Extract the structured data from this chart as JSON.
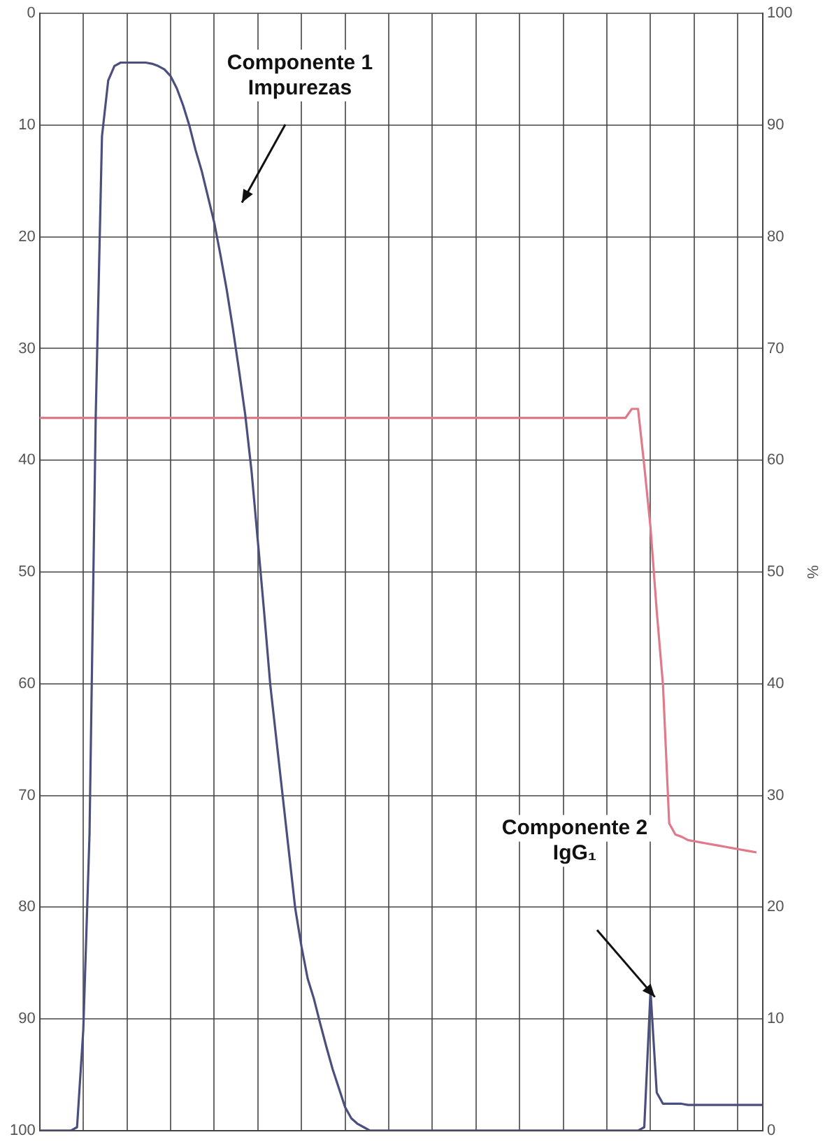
{
  "chart_data": {
    "type": "line",
    "categories": [
      null,
      null,
      null,
      null,
      null,
      null,
      null,
      null,
      null,
      null,
      null,
      null,
      null,
      null,
      null,
      null,
      null,
      null,
      null,
      null,
      null,
      null,
      null,
      null,
      null,
      null,
      null,
      null,
      null,
      null,
      null,
      null,
      null,
      null,
      null,
      null,
      null,
      null,
      null,
      null,
      null,
      null,
      null,
      null,
      null,
      null,
      null,
      null,
      null,
      null,
      null,
      null,
      null,
      null,
      null,
      null,
      null,
      null,
      null,
      null,
      null,
      null,
      null,
      null,
      null,
      null,
      null,
      null,
      null,
      null,
      null,
      null,
      null,
      null,
      null,
      null,
      null,
      null,
      null,
      null,
      null,
      null,
      null,
      null,
      null,
      null,
      null,
      null,
      null,
      null,
      null,
      null,
      null,
      null,
      null,
      null,
      null,
      null,
      null,
      null,
      null,
      null,
      null,
      null,
      null,
      null,
      null,
      null,
      null,
      null,
      null,
      null,
      null,
      null,
      null,
      null,
      null
    ],
    "series": [
      {
        "color": "#4a4f7e",
        "axis": "y2",
        "values": [
          0,
          0,
          0,
          0,
          0,
          0,
          0.3,
          9,
          26.5,
          64,
          89,
          94,
          95.3,
          95.6,
          95.6,
          95.6,
          95.6,
          95.6,
          95.5,
          95.3,
          95,
          94.4,
          93.3,
          91.8,
          90,
          87.8,
          85.9,
          83.6,
          81.3,
          78.4,
          75.3,
          71.8,
          68,
          64,
          59,
          52.8,
          46.5,
          39.9,
          34.9,
          29.9,
          24.9,
          19.9,
          16.5,
          13.6,
          11.8,
          9.6,
          7.5,
          5.5,
          3.8,
          2.1,
          1.1,
          0.6,
          0.3,
          0,
          0,
          0,
          0,
          0,
          0,
          0,
          0,
          0,
          0,
          0,
          0,
          0,
          0,
          0,
          0,
          0,
          0,
          0,
          0,
          0,
          0,
          0,
          0,
          0,
          0,
          0,
          0,
          0,
          0,
          0,
          0,
          0,
          0,
          0,
          0,
          0,
          0,
          0,
          0,
          0,
          0,
          0,
          0,
          0.3,
          12.5,
          3.4,
          2.4,
          2.4,
          2.4,
          2.4,
          2.3,
          2.3,
          2.3,
          2.3,
          2.3,
          2.3,
          2.3,
          2.3,
          2.3,
          2.3,
          2.3,
          2.3,
          2.3
        ]
      },
      {
        "color": "#e07a8a",
        "axis": "y2",
        "values": [
          63.8,
          63.8,
          63.8,
          63.8,
          63.8,
          63.8,
          63.8,
          63.8,
          63.8,
          63.8,
          63.8,
          63.8,
          63.8,
          63.8,
          63.8,
          63.8,
          63.8,
          63.8,
          63.8,
          63.8,
          63.8,
          63.8,
          63.8,
          63.8,
          63.8,
          63.8,
          63.8,
          63.8,
          63.8,
          63.8,
          63.8,
          63.8,
          63.8,
          63.8,
          63.8,
          63.8,
          63.8,
          63.8,
          63.8,
          63.8,
          63.8,
          63.8,
          63.8,
          63.8,
          63.8,
          63.8,
          63.8,
          63.8,
          63.8,
          63.8,
          63.8,
          63.8,
          63.8,
          63.8,
          63.8,
          63.8,
          63.8,
          63.8,
          63.8,
          63.8,
          63.8,
          63.8,
          63.8,
          63.8,
          63.8,
          63.8,
          63.8,
          63.8,
          63.8,
          63.8,
          63.8,
          63.8,
          63.8,
          63.8,
          63.8,
          63.8,
          63.8,
          63.8,
          63.8,
          63.8,
          63.8,
          63.8,
          63.8,
          63.8,
          63.8,
          63.8,
          63.8,
          63.8,
          63.8,
          63.8,
          63.8,
          63.8,
          63.8,
          63.8,
          63.8,
          64.6,
          64.6,
          59.5,
          54,
          46.5,
          39.9,
          27.5,
          26.5,
          26.3,
          26,
          25.9,
          25.8,
          25.7,
          25.6,
          25.5,
          25.4,
          25.3,
          25.2,
          25.1,
          25,
          24.9,
          null
        ]
      }
    ],
    "ylim": [
      100,
      0
    ],
    "yticks": [
      0,
      10,
      20,
      30,
      40,
      50,
      60,
      70,
      80,
      90,
      100
    ],
    "y2lim": [
      0,
      100
    ],
    "y2ticks": [
      0,
      10,
      20,
      30,
      40,
      50,
      60,
      70,
      80,
      90,
      100
    ],
    "y2label": "%",
    "tick_labels": "y",
    "grid": true,
    "legend": false,
    "marker": "none",
    "line_style": "solid",
    "annotations": [
      "Componente 1\nImpurezas",
      "Componente 2\nIgG₁"
    ]
  }
}
